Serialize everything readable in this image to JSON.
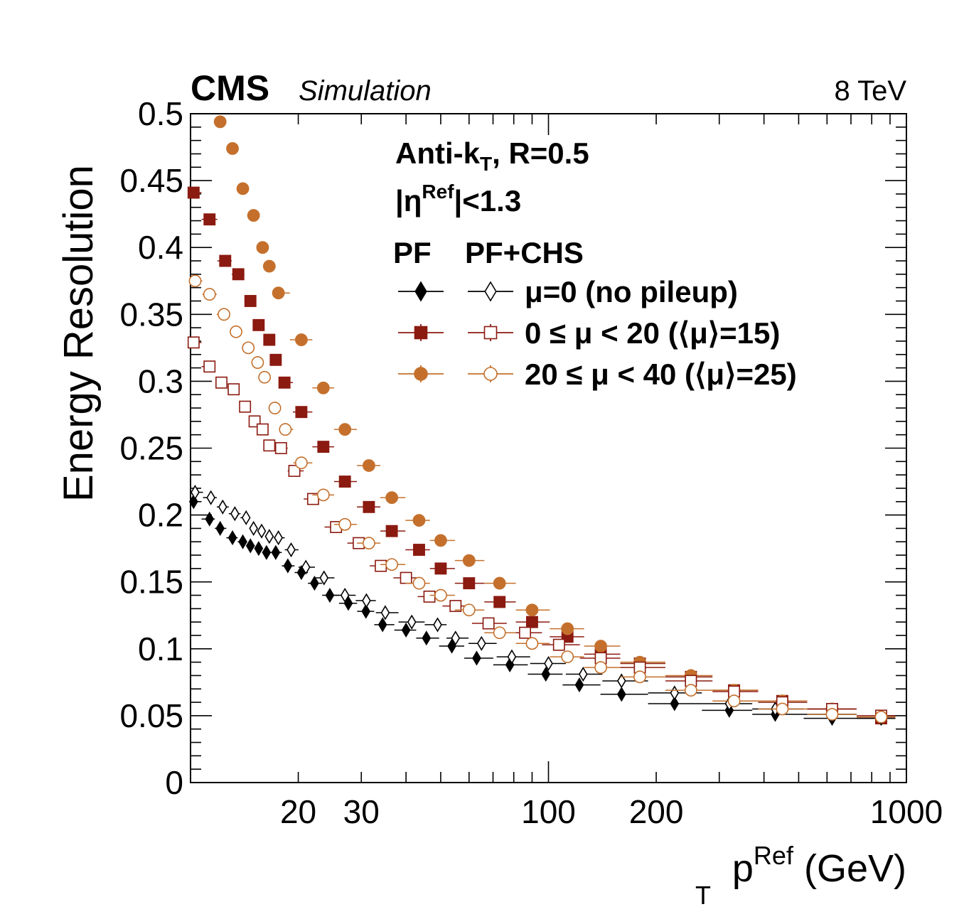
{
  "header": {
    "experiment": "CMS",
    "tag": "Simulation",
    "energy": "8 TeV"
  },
  "labels": {
    "algo_main": "Anti-k",
    "algo_sub": "T",
    "algo_rest": ", R=0.5",
    "eta_pre": "|η",
    "eta_sup": "Ref",
    "eta_post": "|<1.3",
    "col_pf": "PF",
    "col_chs": "PF+CHS"
  },
  "chart_data": {
    "type": "scatter",
    "xlabel": "p_T^Ref (GeV)",
    "xlabel_main": "p",
    "xlabel_sub": "T",
    "xlabel_sup": "Ref",
    "xlabel_unit": "(GeV)",
    "ylabel": "Energy Resolution",
    "xscale": "log",
    "xlim": [
      10,
      1000
    ],
    "ylim": [
      0,
      0.5
    ],
    "y_ticks": [
      "0",
      "0.05",
      "0.1",
      "0.15",
      "0.2",
      "0.25",
      "0.3",
      "0.35",
      "0.4",
      "0.45",
      "0.5"
    ],
    "x_tick_labels": [
      "20",
      "30",
      "100",
      "200",
      "1000"
    ],
    "legend_placement": "top-right",
    "series": [
      {
        "name": "μ=0 (no pileup)",
        "variant": "PF",
        "marker": "diamond",
        "filled": true,
        "color": "#000000",
        "x": [
          10.2,
          11.3,
          12.1,
          13.1,
          14.0,
          14.7,
          15.5,
          16.3,
          17.3,
          18.7,
          20.4,
          22.2,
          24.5,
          27.6,
          30.9,
          34.4,
          40.0,
          45.6,
          53.7,
          63.0,
          78.0,
          98.3,
          122.0,
          160.0,
          225.0,
          320.0,
          430.0,
          620.0,
          850.0
        ],
        "y": [
          0.21,
          0.197,
          0.19,
          0.183,
          0.18,
          0.177,
          0.175,
          0.172,
          0.172,
          0.162,
          0.157,
          0.149,
          0.14,
          0.134,
          0.128,
          0.118,
          0.114,
          0.108,
          0.102,
          0.093,
          0.088,
          0.081,
          0.073,
          0.066,
          0.059,
          0.054,
          0.051,
          0.048,
          0.048
        ]
      },
      {
        "name": "0 ≤ μ < 20 (⟨μ⟩=15)",
        "variant": "PF",
        "marker": "square",
        "filled": true,
        "color": "#8b1a10",
        "x": [
          10.2,
          11.3,
          12.5,
          13.6,
          14.7,
          15.5,
          16.6,
          17.3,
          18.3,
          20.4,
          23.5,
          27.0,
          31.5,
          36.5,
          43.5,
          50.0,
          60.0,
          73.0,
          90.0,
          113.0,
          140.0,
          180.0,
          250.0,
          330.0,
          450.0,
          620.0,
          850.0
        ],
        "y": [
          0.441,
          0.421,
          0.39,
          0.38,
          0.36,
          0.342,
          0.331,
          0.316,
          0.299,
          0.277,
          0.251,
          0.225,
          0.206,
          0.188,
          0.174,
          0.16,
          0.149,
          0.135,
          0.12,
          0.109,
          0.096,
          0.089,
          0.079,
          0.069,
          0.061,
          0.055,
          0.048
        ]
      },
      {
        "name": "20 ≤ μ < 40 (⟨μ⟩=25)",
        "variant": "PF",
        "marker": "circle",
        "filled": true,
        "color": "#c4702c",
        "x": [
          12.1,
          13.1,
          14.0,
          15.0,
          15.9,
          16.6,
          17.6,
          20.4,
          23.5,
          27.0,
          31.5,
          36.5,
          43.5,
          50.0,
          60.0,
          73.0,
          90.0,
          113.0,
          140.0,
          180.0,
          250.0,
          330.0,
          450.0,
          620.0,
          850.0
        ],
        "y": [
          0.494,
          0.474,
          0.444,
          0.424,
          0.4,
          0.386,
          0.366,
          0.331,
          0.295,
          0.264,
          0.237,
          0.213,
          0.196,
          0.181,
          0.166,
          0.149,
          0.129,
          0.115,
          0.102,
          0.09,
          0.08,
          0.069,
          0.061,
          0.055,
          0.049
        ]
      },
      {
        "name": "μ=0 (no pileup)",
        "variant": "PF+CHS",
        "marker": "diamond",
        "filled": false,
        "color": "#000000",
        "x": [
          10.3,
          11.4,
          12.3,
          13.3,
          14.3,
          15.0,
          15.8,
          16.6,
          17.6,
          19.1,
          21.0,
          23.6,
          27.0,
          31.0,
          35.0,
          41.5,
          49.0,
          55.0,
          65.0,
          79.0,
          100.0,
          125.0,
          160.0,
          225.0,
          320.0,
          430.0,
          620.0,
          850.0
        ],
        "y": [
          0.217,
          0.213,
          0.206,
          0.201,
          0.198,
          0.19,
          0.188,
          0.184,
          0.183,
          0.174,
          0.161,
          0.153,
          0.14,
          0.136,
          0.127,
          0.12,
          0.118,
          0.108,
          0.104,
          0.094,
          0.089,
          0.081,
          0.076,
          0.067,
          0.059,
          0.055,
          0.051,
          0.048
        ]
      },
      {
        "name": "0 ≤ μ < 20 (⟨μ⟩=15)",
        "variant": "PF+CHS",
        "marker": "square",
        "filled": false,
        "color": "#8b1a10",
        "x": [
          10.2,
          11.3,
          12.2,
          13.2,
          14.2,
          15.1,
          15.9,
          16.6,
          17.9,
          19.5,
          22.0,
          25.5,
          29.5,
          34.0,
          40.0,
          46.5,
          55.0,
          68.0,
          86.0,
          107.0,
          140.0,
          180.0,
          250.0,
          330.0,
          450.0,
          620.0,
          850.0
        ],
        "y": [
          0.329,
          0.311,
          0.299,
          0.294,
          0.281,
          0.27,
          0.264,
          0.252,
          0.25,
          0.233,
          0.212,
          0.191,
          0.179,
          0.162,
          0.153,
          0.139,
          0.132,
          0.119,
          0.112,
          0.103,
          0.093,
          0.086,
          0.076,
          0.068,
          0.06,
          0.055,
          0.05
        ]
      },
      {
        "name": "20 ≤ μ < 40 (⟨μ⟩=25)",
        "variant": "PF+CHS",
        "marker": "circle",
        "filled": false,
        "color": "#c4702c",
        "x": [
          10.3,
          11.3,
          12.4,
          13.4,
          14.5,
          15.4,
          16.1,
          17.2,
          18.4,
          20.4,
          23.5,
          27.0,
          31.5,
          36.5,
          43.5,
          50.0,
          60.0,
          73.0,
          90.0,
          113.0,
          140.0,
          180.0,
          250.0,
          330.0,
          450.0,
          620.0,
          850.0
        ],
        "y": [
          0.375,
          0.365,
          0.35,
          0.337,
          0.325,
          0.314,
          0.303,
          0.28,
          0.264,
          0.239,
          0.215,
          0.193,
          0.179,
          0.163,
          0.149,
          0.14,
          0.129,
          0.112,
          0.104,
          0.094,
          0.086,
          0.079,
          0.069,
          0.061,
          0.055,
          0.051,
          0.049
        ]
      }
    ],
    "legend_rows": [
      "μ=0 (no pileup)",
      "0 ≤ μ < 20 (⟨μ⟩=15)",
      "20 ≤ μ < 40 (⟨μ⟩=25)"
    ]
  }
}
